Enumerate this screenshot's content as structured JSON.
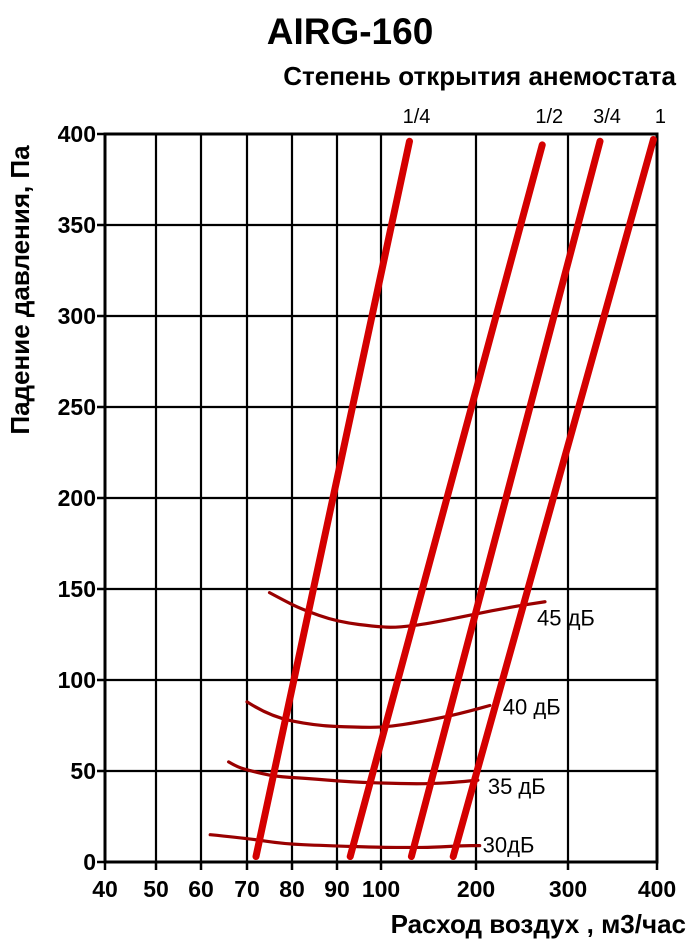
{
  "title": "AIRG-160",
  "subtitle": "Степень открытия анемостата",
  "chart_data": {
    "type": "line",
    "title": "AIRG-160",
    "legend_header": "Степень открытия анемостата",
    "grid": true,
    "x_axis": {
      "label": "Расход воздух , м3/час",
      "scale": "segmented-log",
      "range": [
        40,
        400
      ],
      "ticks": [
        40,
        50,
        60,
        70,
        80,
        90,
        100,
        200,
        300,
        400
      ]
    },
    "y_axis": {
      "label": "Падение давления, Па",
      "scale": "linear",
      "range": [
        0,
        400
      ],
      "tick_step": 50,
      "ticks": [
        0,
        50,
        100,
        150,
        200,
        250,
        300,
        350,
        400
      ]
    },
    "colors": {
      "opening_line": "#d40000",
      "noise_curve": "#990000",
      "grid": "#000000",
      "text": "#000000",
      "background": "#ffffff"
    },
    "opening_lines": [
      {
        "label": "1/4",
        "points": [
          [
            72,
            3
          ],
          [
            130,
            396
          ]
        ]
      },
      {
        "label": "1/2",
        "points": [
          [
            93,
            3
          ],
          [
            272,
            394
          ]
        ]
      },
      {
        "label": "3/4",
        "points": [
          [
            132,
            3
          ],
          [
            336,
            396
          ]
        ]
      },
      {
        "label": "1",
        "points": [
          [
            176,
            3
          ],
          [
            396,
            397
          ]
        ]
      }
    ],
    "noise_curves": [
      {
        "label": "45 дБ",
        "points": [
          [
            75,
            148
          ],
          [
            78,
            144
          ],
          [
            82,
            139
          ],
          [
            90,
            132
          ],
          [
            100,
            129
          ],
          [
            120,
            129
          ],
          [
            150,
            131
          ],
          [
            197,
            136
          ],
          [
            237,
            140
          ],
          [
            275,
            143
          ]
        ]
      },
      {
        "label": "40 дБ",
        "points": [
          [
            70,
            88
          ],
          [
            75,
            80
          ],
          [
            85,
            75
          ],
          [
            94,
            74
          ],
          [
            105,
            74
          ],
          [
            141,
            77
          ],
          [
            170,
            80
          ],
          [
            194,
            83
          ],
          [
            215,
            86
          ]
        ]
      },
      {
        "label": "35 дБ",
        "points": [
          [
            66,
            55
          ],
          [
            68,
            52
          ],
          [
            71,
            50
          ],
          [
            76,
            47
          ],
          [
            83,
            46
          ],
          [
            93,
            44
          ],
          [
            120,
            43
          ],
          [
            155,
            43
          ],
          [
            183,
            44
          ],
          [
            202,
            45
          ]
        ]
      },
      {
        "label": "30дБ",
        "points": [
          [
            62,
            15
          ],
          [
            70,
            13
          ],
          [
            78,
            10
          ],
          [
            87,
            9
          ],
          [
            102,
            8
          ],
          [
            130,
            8
          ],
          [
            155,
            8
          ],
          [
            186,
            9
          ],
          [
            204,
            9
          ]
        ]
      }
    ]
  }
}
